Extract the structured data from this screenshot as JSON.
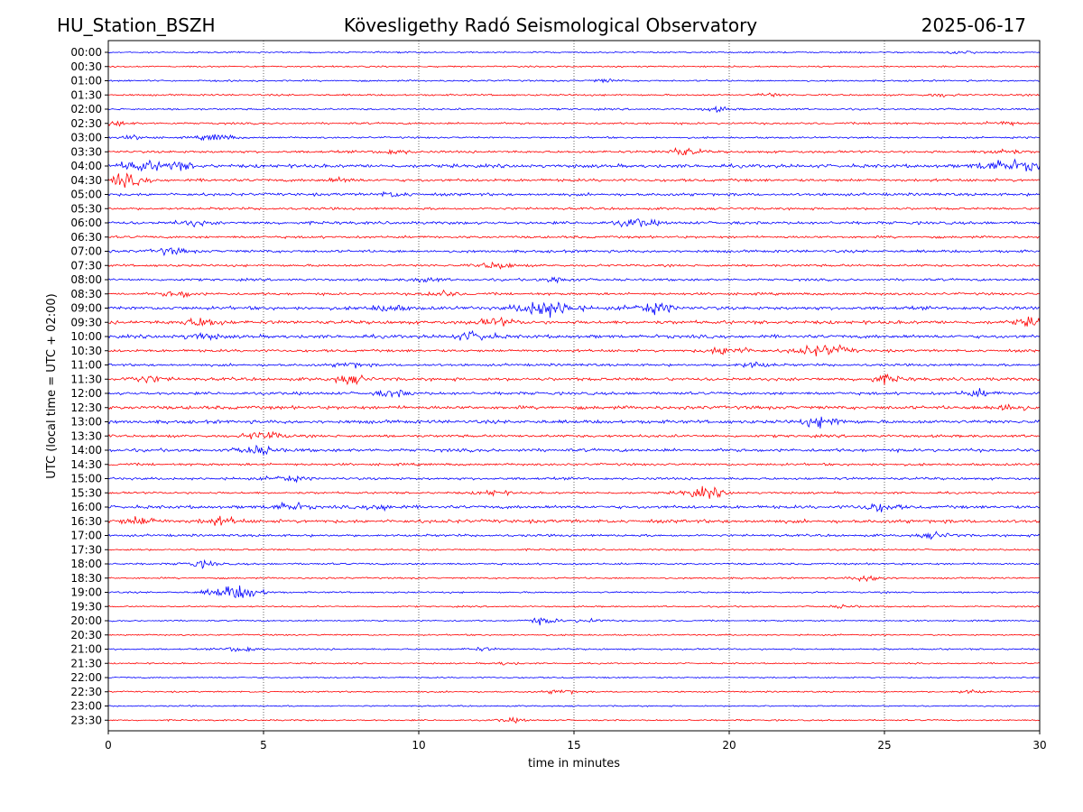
{
  "header": {
    "station": "HU_Station_BSZH",
    "observatory": "Kövesligethy Radó Seismological Observatory",
    "date": "2025-06-17"
  },
  "chart_data": {
    "type": "line",
    "title": "Kövesligethy Radó Seismological Observatory",
    "xlabel": "time in minutes",
    "ylabel": "UTC (local time = UTC + 02:00)",
    "xlim": [
      0,
      30
    ],
    "x_ticks": [
      "0",
      "5",
      "10",
      "15",
      "20",
      "25",
      "30"
    ],
    "vertical_gridlines": [
      5,
      10,
      15,
      20,
      25
    ],
    "grid": "dotted vertical",
    "series_colors": [
      "#0000ff",
      "#ff0000"
    ],
    "rows": [
      {
        "label": "00:00",
        "color": "#0000ff",
        "level": 0.12,
        "events": [
          {
            "t": 27.5,
            "amp": 0.25
          }
        ]
      },
      {
        "label": "00:30",
        "color": "#ff0000",
        "level": 0.12,
        "events": []
      },
      {
        "label": "01:00",
        "color": "#0000ff",
        "level": 0.15,
        "events": [
          {
            "t": 16.0,
            "amp": 0.25
          }
        ]
      },
      {
        "label": "01:30",
        "color": "#ff0000",
        "level": 0.18,
        "events": [
          {
            "t": 21.3,
            "amp": 0.25
          },
          {
            "t": 26.8,
            "amp": 0.25
          }
        ]
      },
      {
        "label": "02:00",
        "color": "#0000ff",
        "level": 0.18,
        "events": [
          {
            "t": 19.6,
            "amp": 0.35
          }
        ]
      },
      {
        "label": "02:30",
        "color": "#ff0000",
        "level": 0.22,
        "events": [
          {
            "t": 0.2,
            "amp": 0.35
          },
          {
            "t": 28.8,
            "amp": 0.35
          }
        ]
      },
      {
        "label": "03:00",
        "color": "#0000ff",
        "level": 0.18,
        "events": [
          {
            "t": 3.5,
            "amp": 0.55
          },
          {
            "t": 0.9,
            "amp": 0.3
          }
        ]
      },
      {
        "label": "03:30",
        "color": "#ff0000",
        "level": 0.3,
        "events": [
          {
            "t": 18.5,
            "amp": 0.6
          },
          {
            "t": 9.2,
            "amp": 0.35
          },
          {
            "t": 28.8,
            "amp": 0.45
          }
        ]
      },
      {
        "label": "04:00",
        "color": "#0000ff",
        "level": 0.5,
        "events": [
          {
            "t": 1.0,
            "amp": 0.8
          },
          {
            "t": 2.2,
            "amp": 0.6
          },
          {
            "t": 28.6,
            "amp": 0.8
          },
          {
            "t": 29.6,
            "amp": 0.6
          }
        ]
      },
      {
        "label": "04:30",
        "color": "#ff0000",
        "level": 0.38,
        "events": [
          {
            "t": 0.5,
            "amp": 0.95
          },
          {
            "t": 7.5,
            "amp": 0.3
          }
        ]
      },
      {
        "label": "05:00",
        "color": "#0000ff",
        "level": 0.38,
        "events": [
          {
            "t": 9.2,
            "amp": 0.35
          }
        ]
      },
      {
        "label": "05:30",
        "color": "#ff0000",
        "level": 0.3,
        "events": []
      },
      {
        "label": "06:00",
        "color": "#0000ff",
        "level": 0.4,
        "events": [
          {
            "t": 17.0,
            "amp": 0.65
          },
          {
            "t": 2.7,
            "amp": 0.4
          }
        ]
      },
      {
        "label": "06:30",
        "color": "#ff0000",
        "level": 0.3,
        "events": []
      },
      {
        "label": "07:00",
        "color": "#0000ff",
        "level": 0.35,
        "events": [
          {
            "t": 2.0,
            "amp": 0.5
          }
        ]
      },
      {
        "label": "07:30",
        "color": "#ff0000",
        "level": 0.3,
        "events": [
          {
            "t": 12.5,
            "amp": 0.5
          }
        ]
      },
      {
        "label": "08:00",
        "color": "#0000ff",
        "level": 0.3,
        "events": [
          {
            "t": 14.5,
            "amp": 0.45
          },
          {
            "t": 10.2,
            "amp": 0.4
          }
        ]
      },
      {
        "label": "08:30",
        "color": "#ff0000",
        "level": 0.32,
        "events": [
          {
            "t": 2.3,
            "amp": 0.5
          },
          {
            "t": 10.7,
            "amp": 0.45
          }
        ]
      },
      {
        "label": "09:00",
        "color": "#0000ff",
        "level": 0.5,
        "events": [
          {
            "t": 13.8,
            "amp": 0.9
          },
          {
            "t": 14.5,
            "amp": 0.85
          },
          {
            "t": 17.5,
            "amp": 0.8
          },
          {
            "t": 9.0,
            "amp": 0.5
          }
        ]
      },
      {
        "label": "09:30",
        "color": "#ff0000",
        "level": 0.5,
        "events": [
          {
            "t": 3.0,
            "amp": 0.7
          },
          {
            "t": 12.5,
            "amp": 0.6
          },
          {
            "t": 29.8,
            "amp": 0.6
          }
        ]
      },
      {
        "label": "10:00",
        "color": "#0000ff",
        "level": 0.5,
        "events": [
          {
            "t": 11.8,
            "amp": 0.7
          },
          {
            "t": 3.0,
            "amp": 0.5
          }
        ]
      },
      {
        "label": "10:30",
        "color": "#ff0000",
        "level": 0.35,
        "events": [
          {
            "t": 20.0,
            "amp": 0.75
          },
          {
            "t": 23.3,
            "amp": 0.75
          },
          {
            "t": 22.5,
            "amp": 0.5
          }
        ]
      },
      {
        "label": "11:00",
        "color": "#0000ff",
        "level": 0.32,
        "events": [
          {
            "t": 7.8,
            "amp": 0.4
          },
          {
            "t": 20.8,
            "amp": 0.45
          }
        ]
      },
      {
        "label": "11:30",
        "color": "#ff0000",
        "level": 0.45,
        "events": [
          {
            "t": 1.2,
            "amp": 0.55
          },
          {
            "t": 7.8,
            "amp": 0.6
          },
          {
            "t": 25.0,
            "amp": 0.55
          }
        ]
      },
      {
        "label": "12:00",
        "color": "#0000ff",
        "level": 0.4,
        "events": [
          {
            "t": 9.2,
            "amp": 0.5
          },
          {
            "t": 28.0,
            "amp": 0.5
          }
        ]
      },
      {
        "label": "12:30",
        "color": "#ff0000",
        "level": 0.5,
        "events": [
          {
            "t": 29.0,
            "amp": 0.55
          }
        ]
      },
      {
        "label": "13:00",
        "color": "#0000ff",
        "level": 0.5,
        "events": [
          {
            "t": 23.0,
            "amp": 0.8
          }
        ]
      },
      {
        "label": "13:30",
        "color": "#ff0000",
        "level": 0.35,
        "events": [
          {
            "t": 5.0,
            "amp": 0.7
          }
        ]
      },
      {
        "label": "14:00",
        "color": "#0000ff",
        "level": 0.45,
        "events": [
          {
            "t": 4.8,
            "amp": 0.65
          }
        ]
      },
      {
        "label": "14:30",
        "color": "#ff0000",
        "level": 0.3,
        "events": []
      },
      {
        "label": "15:00",
        "color": "#0000ff",
        "level": 0.32,
        "events": [
          {
            "t": 5.7,
            "amp": 0.5
          }
        ]
      },
      {
        "label": "15:30",
        "color": "#ff0000",
        "level": 0.25,
        "events": [
          {
            "t": 19.2,
            "amp": 0.85
          },
          {
            "t": 12.4,
            "amp": 0.4
          }
        ]
      },
      {
        "label": "16:00",
        "color": "#0000ff",
        "level": 0.45,
        "events": [
          {
            "t": 5.8,
            "amp": 0.6
          },
          {
            "t": 24.8,
            "amp": 0.65
          },
          {
            "t": 8.8,
            "amp": 0.45
          }
        ]
      },
      {
        "label": "16:30",
        "color": "#ff0000",
        "level": 0.5,
        "events": [
          {
            "t": 1.0,
            "amp": 0.6
          },
          {
            "t": 3.6,
            "amp": 0.6
          }
        ]
      },
      {
        "label": "17:00",
        "color": "#0000ff",
        "level": 0.3,
        "events": [
          {
            "t": 26.7,
            "amp": 0.45
          }
        ]
      },
      {
        "label": "17:30",
        "color": "#ff0000",
        "level": 0.18,
        "events": []
      },
      {
        "label": "18:00",
        "color": "#0000ff",
        "level": 0.2,
        "events": [
          {
            "t": 3.0,
            "amp": 0.5
          }
        ]
      },
      {
        "label": "18:30",
        "color": "#ff0000",
        "level": 0.15,
        "events": [
          {
            "t": 24.5,
            "amp": 0.5
          }
        ]
      },
      {
        "label": "19:00",
        "color": "#0000ff",
        "level": 0.15,
        "events": [
          {
            "t": 3.9,
            "amp": 1.0
          },
          {
            "t": 4.6,
            "amp": 0.5
          }
        ]
      },
      {
        "label": "19:30",
        "color": "#ff0000",
        "level": 0.12,
        "events": [
          {
            "t": 23.7,
            "amp": 0.25
          }
        ]
      },
      {
        "label": "20:00",
        "color": "#0000ff",
        "level": 0.12,
        "events": [
          {
            "t": 14.0,
            "amp": 0.5
          },
          {
            "t": 15.5,
            "amp": 0.3
          }
        ]
      },
      {
        "label": "20:30",
        "color": "#ff0000",
        "level": 0.12,
        "events": []
      },
      {
        "label": "21:00",
        "color": "#0000ff",
        "level": 0.15,
        "events": [
          {
            "t": 4.3,
            "amp": 0.45
          },
          {
            "t": 12.0,
            "amp": 0.25
          }
        ]
      },
      {
        "label": "21:30",
        "color": "#ff0000",
        "level": 0.1,
        "events": [
          {
            "t": 12.8,
            "amp": 0.25
          }
        ]
      },
      {
        "label": "22:00",
        "color": "#0000ff",
        "level": 0.1,
        "events": []
      },
      {
        "label": "22:30",
        "color": "#ff0000",
        "level": 0.12,
        "events": [
          {
            "t": 14.6,
            "amp": 0.35
          },
          {
            "t": 27.8,
            "amp": 0.3
          }
        ]
      },
      {
        "label": "23:00",
        "color": "#0000ff",
        "level": 0.1,
        "events": []
      },
      {
        "label": "23:30",
        "color": "#ff0000",
        "level": 0.12,
        "events": [
          {
            "t": 13.0,
            "amp": 0.3
          }
        ]
      }
    ]
  }
}
